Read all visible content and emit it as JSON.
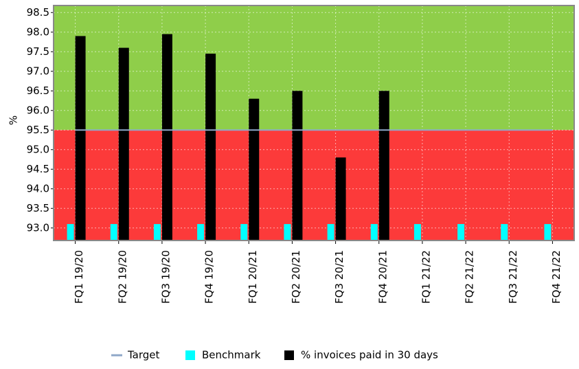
{
  "chart_data": {
    "type": "bar",
    "y_label": "%",
    "categories": [
      "FQ1 19/20",
      "FQ2 19/20",
      "FQ3 19/20",
      "FQ4 19/20",
      "FQ1 20/21",
      "FQ2 20/21",
      "FQ3 20/21",
      "FQ4 20/21",
      "FQ1 21/22",
      "FQ2 21/22",
      "FQ3 21/22",
      "FQ4 21/22"
    ],
    "series": [
      {
        "name": "Target",
        "color": "#8fa8c8",
        "kind": "line",
        "values": [
          95.5,
          95.5,
          95.5,
          95.5,
          95.5,
          95.5,
          95.5,
          95.5,
          95.5,
          95.5,
          95.5,
          95.5
        ]
      },
      {
        "name": "Benchmark",
        "color": "#00ffff",
        "kind": "bar",
        "values": [
          93.1,
          93.1,
          93.1,
          93.1,
          93.1,
          93.1,
          93.1,
          93.1,
          93.1,
          93.1,
          93.1,
          93.1
        ]
      },
      {
        "name": "% invoices paid in 30 days",
        "color": "#000000",
        "kind": "bar",
        "values": [
          97.9,
          97.6,
          97.95,
          97.45,
          96.3,
          96.5,
          94.8,
          96.5,
          null,
          null,
          null,
          null
        ]
      }
    ],
    "above_target_color": "#8fce4a",
    "below_target_color": "#fc3a3a",
    "ylim": [
      92.68,
      98.68
    ],
    "yticks": [
      {
        "value": 93,
        "label": "93.0"
      },
      93.5,
      {
        "value": 94,
        "label": "94.0"
      },
      94.5,
      {
        "value": 95,
        "label": "95.0"
      },
      95.5,
      {
        "value": 96,
        "label": "96.0"
      },
      96.5,
      {
        "value": 97,
        "label": "97.0"
      },
      97.5,
      {
        "value": 98,
        "label": "98.0"
      },
      98.5
    ],
    "grid": true,
    "legend": "bottom"
  }
}
